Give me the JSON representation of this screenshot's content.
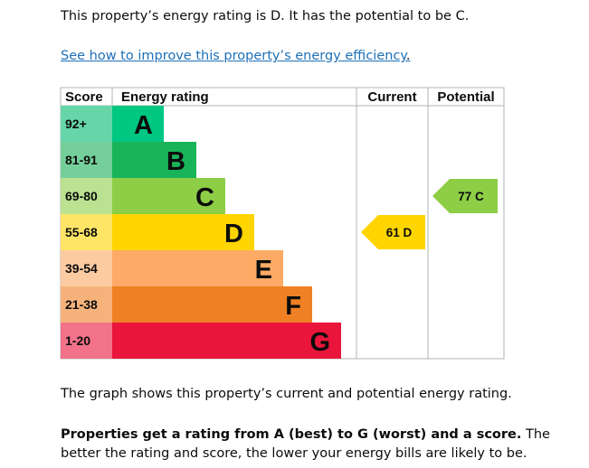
{
  "intro_text": "This property’s energy rating is D. It has the potential to be C.",
  "improve_link": {
    "text": "See how to improve this property’s energy efficiency",
    "trailing": "."
  },
  "chart_data": {
    "type": "bar",
    "headers": {
      "score": "Score",
      "rating": "Energy rating",
      "current": "Current",
      "potential": "Potential"
    },
    "bands": [
      {
        "letter": "A",
        "range": "92+",
        "color": "#00c781",
        "score_bg": "#66d6a8"
      },
      {
        "letter": "B",
        "range": "81-91",
        "color": "#19b459",
        "score_bg": "#75cf9a"
      },
      {
        "letter": "C",
        "range": "69-80",
        "color": "#8dce46",
        "score_bg": "#bbe290"
      },
      {
        "letter": "D",
        "range": "55-68",
        "color": "#ffd500",
        "score_bg": "#ffe566"
      },
      {
        "letter": "E",
        "range": "39-54",
        "color": "#fcaa65",
        "score_bg": "#fdcba2"
      },
      {
        "letter": "F",
        "range": "21-38",
        "color": "#ef8023",
        "score_bg": "#f5b37b"
      },
      {
        "letter": "G",
        "range": "1-20",
        "color": "#e9153b",
        "score_bg": "#f27389"
      }
    ],
    "current": {
      "score": 61,
      "letter": "D",
      "label": "61  D",
      "color": "#ffd500"
    },
    "potential": {
      "score": 77,
      "letter": "C",
      "label": "77  C",
      "color": "#8dce46"
    }
  },
  "caption": "The graph shows this property’s current and potential energy rating.",
  "explanation": {
    "bold": "Properties get a rating from A (best) to G (worst) and a score.",
    "rest": " The better the rating and score, the lower your energy bills are likely to be."
  }
}
